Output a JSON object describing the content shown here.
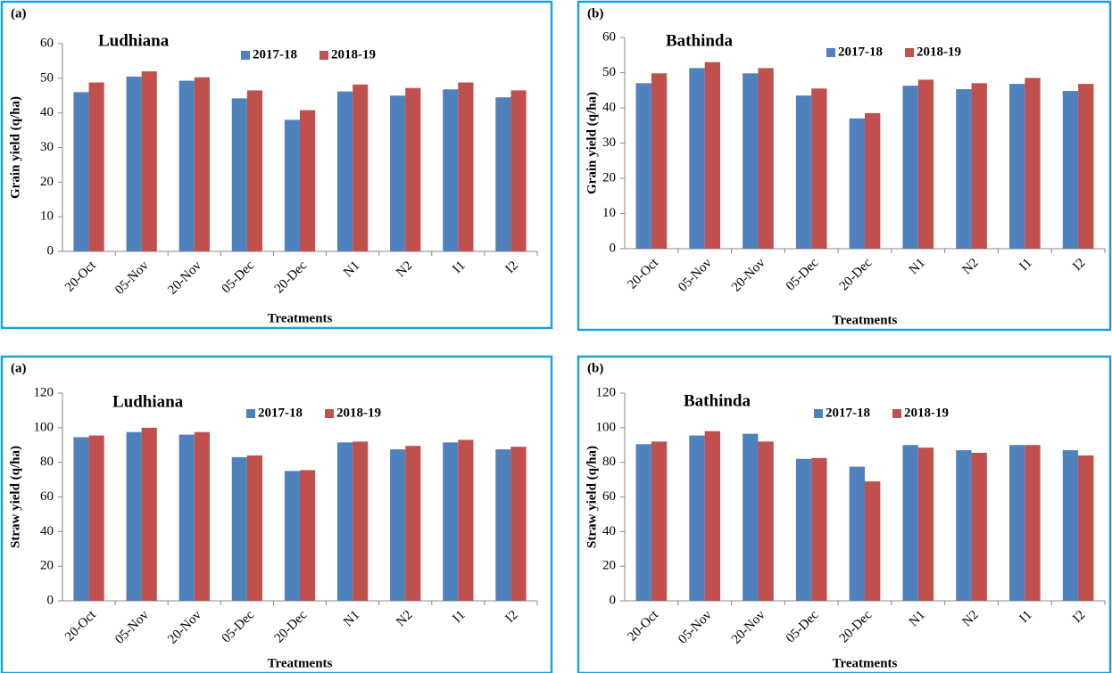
{
  "chart_data": [
    {
      "type": "bar",
      "panel_label": "(a)",
      "title": "Ludhiana",
      "y_label": "Grain yield (q/ha)",
      "x_label": "Treatments",
      "categories": [
        "20-Oct",
        "05-Nov",
        "20-Nov",
        "05-Dec",
        "20-Dec",
        "N1",
        "N2",
        "I1",
        "I2"
      ],
      "series": [
        {
          "name": "2017-18",
          "color": "#4f81bd",
          "values": [
            46,
            50.5,
            49.3,
            44.2,
            38,
            46.2,
            45,
            46.8,
            44.5
          ]
        },
        {
          "name": "2018-19",
          "color": "#c0504d",
          "values": [
            48.8,
            52,
            50.3,
            46.5,
            40.8,
            48.2,
            47.2,
            48.8,
            46.5
          ]
        }
      ],
      "ylim": [
        0,
        60
      ],
      "yticks": [
        0,
        10,
        20,
        30,
        40,
        50,
        60
      ]
    },
    {
      "type": "bar",
      "panel_label": "(b)",
      "title": "Bathinda",
      "y_label": "Grain yield (q/ha)",
      "x_label": "Treatments",
      "categories": [
        "20-Oct",
        "05-Nov",
        "20-Nov",
        "05-Dec",
        "20-Dec",
        "N1",
        "N2",
        "I1",
        "I2"
      ],
      "series": [
        {
          "name": "2017-18",
          "color": "#4f81bd",
          "values": [
            47,
            51.3,
            49.8,
            43.5,
            37,
            46.3,
            45.3,
            46.8,
            44.8
          ]
        },
        {
          "name": "2018-19",
          "color": "#c0504d",
          "values": [
            49.8,
            53,
            51.3,
            45.5,
            38.5,
            48,
            47,
            48.5,
            46.8
          ]
        }
      ],
      "ylim": [
        0,
        60
      ],
      "yticks": [
        0,
        10,
        20,
        30,
        40,
        50,
        60
      ]
    },
    {
      "type": "bar",
      "panel_label": "(a)",
      "title": "Ludhiana",
      "y_label": "Straw yield (q/ha)",
      "x_label": "Treatments",
      "categories": [
        "20-Oct",
        "05-Nov",
        "20-Nov",
        "05-Dec",
        "20-Dec",
        "N1",
        "N2",
        "I1",
        "I2"
      ],
      "series": [
        {
          "name": "2017-18",
          "color": "#4f81bd",
          "values": [
            94.5,
            97.5,
            96,
            83,
            75,
            91.5,
            87.5,
            91.5,
            87.5
          ]
        },
        {
          "name": "2018-19",
          "color": "#c0504d",
          "values": [
            95.5,
            100,
            97.5,
            84,
            75.5,
            92,
            89.5,
            93,
            89
          ]
        }
      ],
      "ylim": [
        0,
        120
      ],
      "yticks": [
        0,
        20,
        40,
        60,
        80,
        100,
        120
      ]
    },
    {
      "type": "bar",
      "panel_label": "(b)",
      "title": "Bathinda",
      "y_label": "Straw yield (q/ha)",
      "x_label": "Treatments",
      "categories": [
        "20-Oct",
        "05-Nov",
        "20-Nov",
        "05-Dec",
        "20-Dec",
        "N1",
        "N2",
        "I1",
        "I2"
      ],
      "series": [
        {
          "name": "2017-18",
          "color": "#4f81bd",
          "values": [
            90.5,
            95.5,
            96.5,
            82,
            77.5,
            90,
            87,
            90,
            87
          ]
        },
        {
          "name": "2018-19",
          "color": "#c0504d",
          "values": [
            92,
            98,
            92,
            82.5,
            69,
            88.5,
            85.5,
            90,
            84
          ]
        }
      ],
      "ylim": [
        0,
        120
      ],
      "yticks": [
        0,
        20,
        40,
        60,
        80,
        100,
        120
      ]
    }
  ]
}
